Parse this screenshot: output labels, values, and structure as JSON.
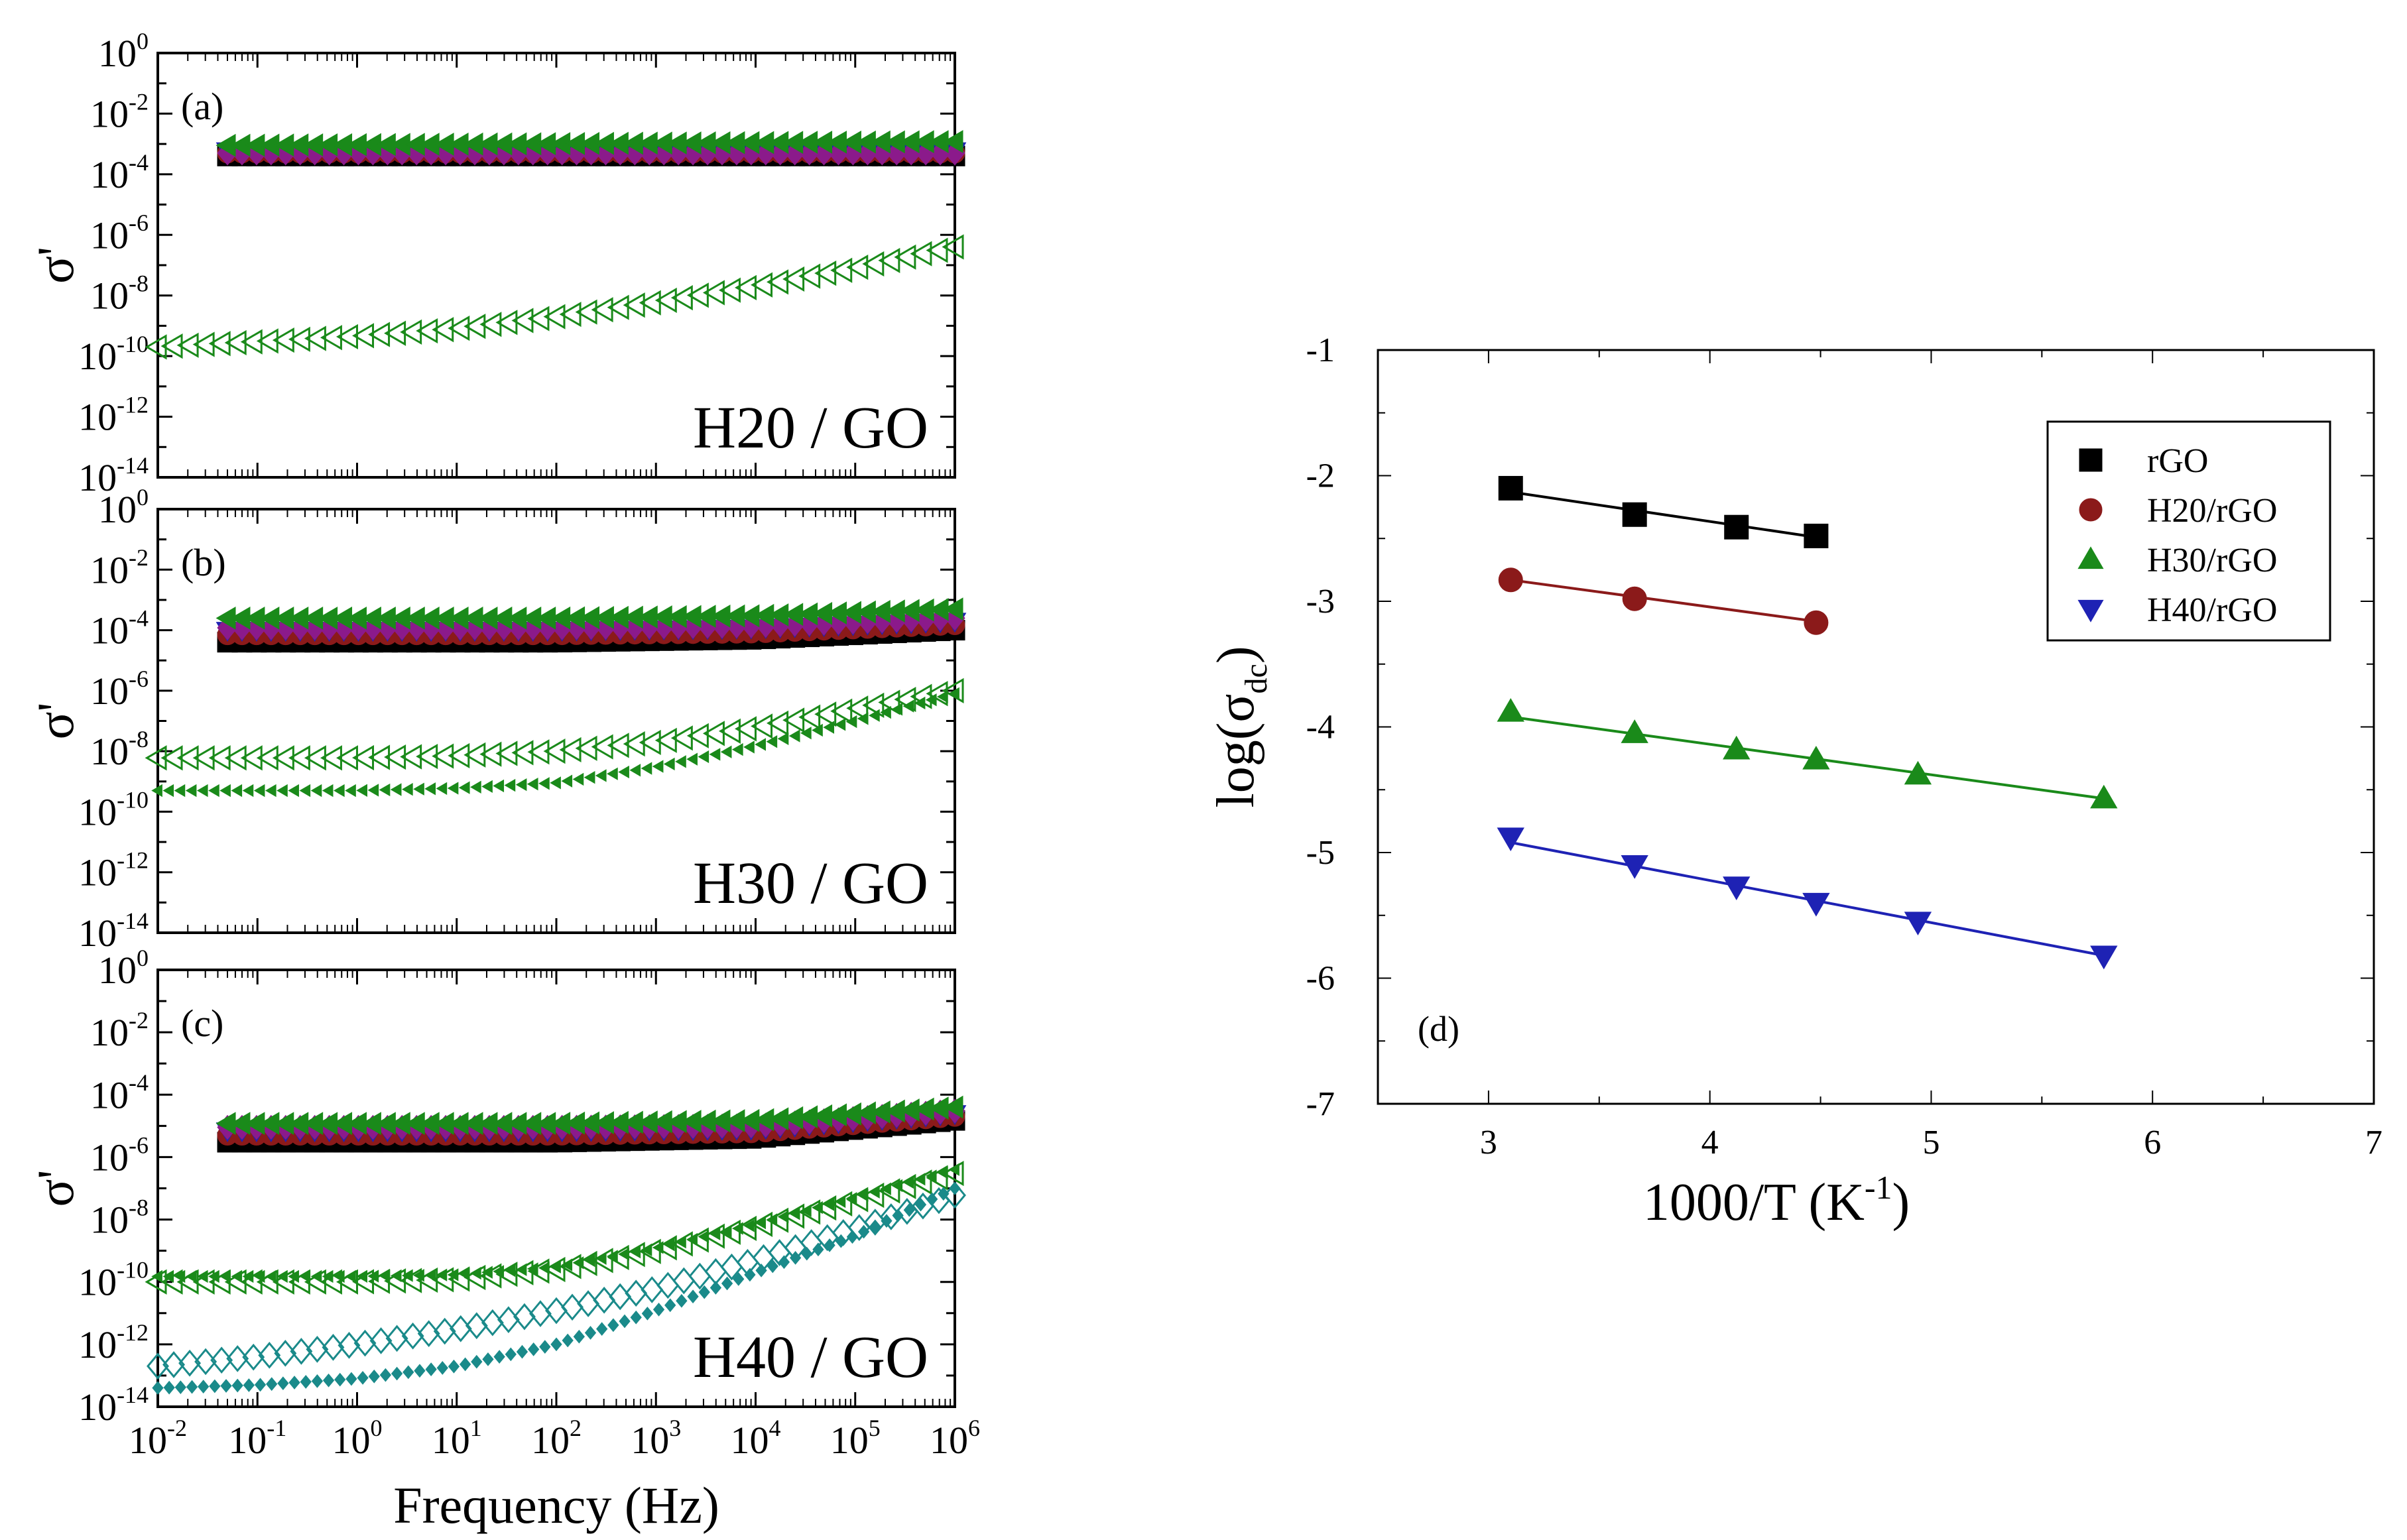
{
  "chart_data": [
    {
      "panel": "(a)",
      "type": "scatter",
      "annotation": "H20 / GO",
      "xlabel": "",
      "ylabel": "σ'",
      "xscale": "log",
      "yscale": "log",
      "xlim": [
        0.01,
        1000000
      ],
      "ylim": [
        1e-14,
        1
      ],
      "y_tick_labels": [
        "10^0",
        "10^-2",
        "10^-4",
        "10^-6",
        "10^-8",
        "10^-10",
        "10^-12",
        "10^-14"
      ],
      "series": [
        {
          "marker": "filled-square",
          "color": "#000000",
          "x": [
            0.05,
            1000000
          ],
          "y": [
            0.0004,
            0.0004
          ]
        },
        {
          "marker": "filled-circle",
          "color": "#8b1a1a",
          "x": [
            0.05,
            1000000
          ],
          "y": [
            0.0005,
            0.0005
          ]
        },
        {
          "marker": "filled-triangle-down",
          "color": "#1e22b4",
          "x": [
            0.05,
            1000000
          ],
          "y": [
            0.0006,
            0.0006
          ]
        },
        {
          "marker": "filled-diamond",
          "color": "#8b1a8b",
          "x": [
            0.05,
            1000000
          ],
          "y": [
            0.0005,
            0.0005
          ]
        },
        {
          "marker": "filled-triangle-left",
          "color": "#1a8a1a",
          "x": [
            0.05,
            1000000
          ],
          "y": [
            0.0009,
            0.0012
          ]
        },
        {
          "marker": "open-triangle-left",
          "color": "#1a8a1a",
          "x": [
            0.01,
            0.1,
            1,
            10,
            100,
            1000,
            10000,
            100000,
            1000000
          ],
          "y": [
            2e-10,
            3e-10,
            4.5e-10,
            8e-10,
            2e-09,
            6e-09,
            2e-08,
            8e-08,
            4e-07
          ]
        }
      ]
    },
    {
      "panel": "(b)",
      "type": "scatter",
      "annotation": "H30 / GO",
      "xlabel": "",
      "ylabel": "σ'",
      "xscale": "log",
      "yscale": "log",
      "xlim": [
        0.01,
        1000000
      ],
      "ylim": [
        1e-14,
        1
      ],
      "y_tick_labels": [
        "10^0",
        "10^-2",
        "10^-4",
        "10^-6",
        "10^-8",
        "10^-10",
        "10^-12",
        "10^-14"
      ],
      "series": [
        {
          "marker": "filled-square",
          "color": "#000000",
          "x": [
            0.05,
            1,
            100,
            10000,
            1000000
          ],
          "y": [
            4e-05,
            4e-05,
            4e-05,
            5e-05,
            0.0001
          ]
        },
        {
          "marker": "filled-circle",
          "color": "#8b1a1a",
          "x": [
            0.05,
            1,
            100,
            10000,
            1000000
          ],
          "y": [
            7e-05,
            7e-05,
            7e-05,
            8e-05,
            0.00015
          ]
        },
        {
          "marker": "filled-triangle-down",
          "color": "#1e22b4",
          "x": [
            0.05,
            1,
            100,
            10000,
            1000000
          ],
          "y": [
            0.0001,
            0.0001,
            0.0001,
            0.00012,
            0.0002
          ]
        },
        {
          "marker": "filled-diamond",
          "color": "#8b1a8b",
          "x": [
            0.05,
            1,
            100,
            10000,
            1000000
          ],
          "y": [
            0.00012,
            0.00012,
            0.00012,
            0.00014,
            0.00025
          ]
        },
        {
          "marker": "filled-triangle-left",
          "color": "#1a8a1a",
          "x": [
            0.05,
            1,
            100,
            10000,
            1000000
          ],
          "y": [
            0.00025,
            0.00025,
            0.00025,
            0.0003,
            0.0005
          ]
        },
        {
          "marker": "open-triangle-left",
          "color": "#1a8a1a",
          "x": [
            0.01,
            0.1,
            1,
            10,
            100,
            1000,
            10000,
            100000,
            1000000
          ],
          "y": [
            6e-09,
            6e-09,
            6e-09,
            7e-09,
            1e-08,
            2e-08,
            6e-08,
            2.5e-07,
            1e-06
          ]
        },
        {
          "marker": "small-filled-triangle-left",
          "color": "#1a8a1a",
          "x": [
            0.01,
            0.1,
            1,
            10,
            100,
            1000,
            10000,
            100000,
            1000000
          ],
          "y": [
            5e-10,
            5e-10,
            5e-10,
            6e-10,
            9e-10,
            3e-09,
            1.5e-08,
            1e-07,
            8e-07
          ]
        }
      ]
    },
    {
      "panel": "(c)",
      "type": "scatter",
      "annotation": "H40 / GO",
      "xlabel": "Frequency (Hz)",
      "ylabel": "σ'",
      "xscale": "log",
      "yscale": "log",
      "xlim": [
        0.01,
        1000000
      ],
      "ylim": [
        1e-14,
        1
      ],
      "x_tick_labels": [
        "10^-2",
        "10^-1",
        "10^0",
        "10^1",
        "10^2",
        "10^3",
        "10^4",
        "10^5",
        "10^6"
      ],
      "y_tick_labels": [
        "10^0",
        "10^-2",
        "10^-4",
        "10^-6",
        "10^-8",
        "10^-10",
        "10^-12",
        "10^-14"
      ],
      "series": [
        {
          "marker": "filled-square",
          "color": "#000000",
          "x": [
            0.05,
            1,
            100,
            10000,
            1000000
          ],
          "y": [
            3e-06,
            3e-06,
            3e-06,
            4e-06,
            1.5e-05
          ]
        },
        {
          "marker": "filled-circle",
          "color": "#8b1a1a",
          "x": [
            0.05,
            1,
            100,
            10000,
            1000000
          ],
          "y": [
            5e-06,
            5e-06,
            5e-06,
            6e-06,
            2e-05
          ]
        },
        {
          "marker": "filled-triangle-down",
          "color": "#1e22b4",
          "x": [
            0.05,
            1,
            100,
            10000,
            1000000
          ],
          "y": [
            7e-06,
            7e-06,
            7e-06,
            8e-06,
            2.5e-05
          ]
        },
        {
          "marker": "filled-diamond",
          "color": "#8b1a8b",
          "x": [
            0.05,
            1,
            100,
            10000,
            1000000
          ],
          "y": [
            9e-06,
            9e-06,
            9e-06,
            1e-05,
            3e-05
          ]
        },
        {
          "marker": "filled-triangle-left",
          "color": "#1a8a1a",
          "x": [
            0.05,
            1,
            100,
            10000,
            1000000
          ],
          "y": [
            1.2e-05,
            1.2e-05,
            1.2e-05,
            1.5e-05,
            4e-05
          ]
        },
        {
          "marker": "open-triangle-left",
          "color": "#1a8a1a",
          "x": [
            0.01,
            0.1,
            1,
            10,
            100,
            1000,
            10000,
            100000,
            1000000
          ],
          "y": [
            1e-10,
            1e-10,
            1e-10,
            1.2e-10,
            2.5e-10,
            1e-09,
            6e-09,
            4e-08,
            3e-07
          ]
        },
        {
          "marker": "small-filled-triangle-left",
          "color": "#1a8a1a",
          "x": [
            0.01,
            0.1,
            1,
            10,
            100,
            1000,
            10000,
            100000,
            1000000
          ],
          "y": [
            1.5e-10,
            1.5e-10,
            1.5e-10,
            1.7e-10,
            3e-10,
            1.2e-09,
            7e-09,
            5e-08,
            4e-07
          ]
        },
        {
          "marker": "open-diamond",
          "color": "#1a8a8a",
          "x": [
            0.01,
            0.1,
            1,
            10,
            100,
            1000,
            10000,
            100000,
            1000000
          ],
          "y": [
            2e-13,
            4e-13,
            1e-12,
            3e-12,
            1.2e-11,
            6e-11,
            5e-10,
            5e-09,
            6e-08
          ]
        },
        {
          "marker": "small-filled-diamond",
          "color": "#1a8a8a",
          "x": [
            0.01,
            0.1,
            1,
            10,
            100,
            1000,
            10000,
            100000,
            1000000
          ],
          "y": [
            4e-14,
            5e-14,
            8e-14,
            2e-13,
            1e-12,
            1.2e-11,
            2e-10,
            3e-09,
            1e-07
          ]
        }
      ]
    },
    {
      "panel": "(d)",
      "type": "scatter",
      "title": "",
      "xlabel": "1000/T (K-1)",
      "ylabel": "log(σdc)",
      "xlim": [
        2.5,
        7
      ],
      "ylim": [
        -7,
        -1
      ],
      "x_ticks": [
        3,
        4,
        5,
        6,
        7
      ],
      "y_ticks": [
        -1,
        -2,
        -3,
        -4,
        -5,
        -6,
        -7
      ],
      "legend_position": "top-right",
      "grid": false,
      "series": [
        {
          "name": "rGO",
          "marker": "square",
          "color": "#000000",
          "x": [
            3.1,
            3.66,
            4.12,
            4.48
          ],
          "y": [
            -2.1,
            -2.31,
            -2.41,
            -2.48
          ],
          "fit": [
            [
              3.1,
              -2.13
            ],
            [
              4.48,
              -2.49
            ]
          ]
        },
        {
          "name": "H20/rGO",
          "marker": "circle",
          "color": "#8b1a1a",
          "x": [
            3.1,
            3.66,
            4.48
          ],
          "y": [
            -2.83,
            -2.98,
            -3.17
          ],
          "fit": [
            [
              3.1,
              -2.83
            ],
            [
              4.48,
              -3.16
            ]
          ]
        },
        {
          "name": "H30/rGO",
          "marker": "triangle-up",
          "color": "#1a8a1a",
          "x": [
            3.1,
            3.66,
            4.12,
            4.48,
            4.94,
            5.78
          ],
          "y": [
            -3.88,
            -4.05,
            -4.18,
            -4.26,
            -4.38,
            -4.57
          ],
          "fit": [
            [
              3.1,
              -3.92
            ],
            [
              5.78,
              -4.57
            ]
          ]
        },
        {
          "name": "H40/rGO",
          "marker": "triangle-down",
          "color": "#1e22b4",
          "x": [
            3.1,
            3.66,
            4.12,
            4.48,
            4.94,
            5.78
          ],
          "y": [
            -4.88,
            -5.1,
            -5.27,
            -5.4,
            -5.55,
            -5.82
          ],
          "fit": [
            [
              3.1,
              -4.92
            ],
            [
              5.78,
              -5.82
            ]
          ]
        }
      ],
      "annotation": "(d)"
    }
  ]
}
